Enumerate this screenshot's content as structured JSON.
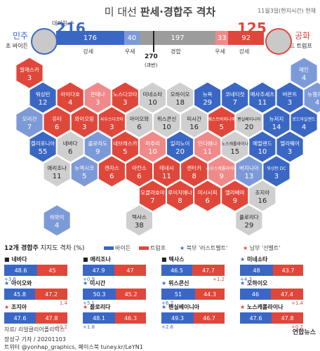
{
  "header": {
    "title_prefix": "미 대선",
    "title_main": "판세·경합주 격차",
    "date": "11월3일(현지시간) 현재",
    "electoral_label": "대의원 수"
  },
  "left": {
    "party": "민주",
    "name": "조 바이든",
    "total": "216"
  },
  "right": {
    "party": "공화",
    "name": "도널드 트럼프",
    "total": "125"
  },
  "bar": {
    "segments": [
      {
        "value": "176",
        "label": "강세",
        "color": "#3b67c4"
      },
      {
        "value": "40",
        "label": "우세",
        "color": "#7d9ad8"
      },
      {
        "value": "197",
        "label": "경합",
        "color": "#9c9c9c"
      },
      {
        "value": "33",
        "label": "우세",
        "color": "#f08a8a"
      },
      {
        "value": "92",
        "label": "강세",
        "color": "#e0473b"
      }
    ],
    "threshold": "270",
    "threshold_note": "(과반)"
  },
  "colors": {
    "sd": "#3b67c4",
    "ld": "#7d9ad8",
    "tu": "#cfcfcf",
    "lr": "#f08a8a",
    "sr": "#e0473b"
  },
  "states": [
    {
      "n": "알래스카",
      "v": "3",
      "c": "sr",
      "q": 0,
      "r": 0
    },
    {
      "n": "워싱턴",
      "v": "12",
      "c": "sd",
      "q": 0,
      "r": 1
    },
    {
      "n": "아이다호",
      "v": "4",
      "c": "sr",
      "q": 1,
      "r": 1
    },
    {
      "n": "몬태나",
      "v": "3",
      "c": "lr",
      "q": 2,
      "r": 1
    },
    {
      "n": "노스다코타",
      "v": "3",
      "c": "sr",
      "q": 3,
      "r": 1
    },
    {
      "n": "미네소타",
      "v": "10",
      "c": "tu",
      "q": 4,
      "r": 1
    },
    {
      "n": "오하이오",
      "v": "18",
      "c": "tu",
      "q": 5,
      "r": 1
    },
    {
      "n": "뉴욕",
      "v": "29",
      "c": "sd",
      "q": 6,
      "r": 1
    },
    {
      "n": "코네티컷",
      "v": "7",
      "c": "sd",
      "q": 7,
      "r": 1
    },
    {
      "n": "매사추세츠",
      "v": "11",
      "c": "sd",
      "q": 8,
      "r": 1
    },
    {
      "n": "버몬트",
      "v": "3",
      "c": "sd",
      "q": 9,
      "r": 1
    },
    {
      "n": "뉴햄프셔",
      "v": "4",
      "c": "ld",
      "q": 10,
      "r": 1
    },
    {
      "n": "메인",
      "v": "4",
      "c": "ld",
      "q": 10,
      "r": 0
    },
    {
      "n": "오리건",
      "v": "7",
      "c": "ld",
      "q": 0,
      "r": 2
    },
    {
      "n": "유타",
      "v": "6",
      "c": "sr",
      "q": 1,
      "r": 2
    },
    {
      "n": "와이오밍",
      "v": "3",
      "c": "sr",
      "q": 2,
      "r": 2
    },
    {
      "n": "사우스다코타",
      "v": "3",
      "c": "sr",
      "q": 3,
      "r": 2
    },
    {
      "n": "아이오와",
      "v": "6",
      "c": "tu",
      "q": 4,
      "r": 2
    },
    {
      "n": "위스콘신",
      "v": "10",
      "c": "tu",
      "q": 5,
      "r": 2
    },
    {
      "n": "미시간",
      "v": "16",
      "c": "tu",
      "q": 6,
      "r": 2
    },
    {
      "n": "웨스트버지니아",
      "v": "5",
      "c": "sr",
      "q": 7,
      "r": 2
    },
    {
      "n": "펜실베이니아",
      "v": "20",
      "c": "tu",
      "q": 8,
      "r": 2
    },
    {
      "n": "뉴저지",
      "v": "14",
      "c": "sd",
      "q": 9,
      "r": 2
    },
    {
      "n": "로드아일랜드",
      "v": "4",
      "c": "sd",
      "q": 10,
      "r": 2
    },
    {
      "n": "캘리포니아",
      "v": "55",
      "c": "sd",
      "q": 0,
      "r": 3
    },
    {
      "n": "네바다",
      "v": "6",
      "c": "tu",
      "q": 1,
      "r": 3
    },
    {
      "n": "콜로라도",
      "v": "9",
      "c": "ld",
      "q": 2,
      "r": 3
    },
    {
      "n": "네브래스카",
      "v": "5",
      "c": "sr",
      "q": 3,
      "r": 3
    },
    {
      "n": "미주리",
      "v": "10",
      "c": "lr",
      "q": 4,
      "r": 3
    },
    {
      "n": "일리노이",
      "v": "20",
      "c": "sd",
      "q": 5,
      "r": 3
    },
    {
      "n": "인디애나",
      "v": "11",
      "c": "lr",
      "q": 6,
      "r": 3
    },
    {
      "n": "노스캐롤라이나",
      "v": "15",
      "c": "tu",
      "q": 7,
      "r": 3
    },
    {
      "n": "메릴랜드",
      "v": "10",
      "c": "sd",
      "q": 8,
      "r": 3
    },
    {
      "n": "델라웨어",
      "v": "3",
      "c": "sd",
      "q": 9,
      "r": 3
    },
    {
      "n": "애리조나",
      "v": "11",
      "c": "tu",
      "q": 1,
      "r": 4
    },
    {
      "n": "뉴멕시코",
      "v": "5",
      "c": "ld",
      "q": 2,
      "r": 4
    },
    {
      "n": "캔자스",
      "v": "6",
      "c": "sr",
      "q": 3,
      "r": 4
    },
    {
      "n": "아칸소",
      "v": "6",
      "c": "sr",
      "q": 4,
      "r": 4
    },
    {
      "n": "테네시",
      "v": "11",
      "c": "sr",
      "q": 5,
      "r": 4
    },
    {
      "n": "켄터키",
      "v": "8",
      "c": "sr",
      "q": 6,
      "r": 4
    },
    {
      "n": "사우스캐롤라이나",
      "v": "9",
      "c": "lr",
      "q": 7,
      "r": 4
    },
    {
      "n": "버지니아",
      "v": "13",
      "c": "ld",
      "q": 8,
      "r": 4
    },
    {
      "n": "워싱턴 DC",
      "v": "3",
      "c": "sd",
      "q": 9,
      "r": 4
    },
    {
      "n": "오클라호마",
      "v": "7",
      "c": "sr",
      "q": 4,
      "r": 5
    },
    {
      "n": "루이지애나",
      "v": "8",
      "c": "sr",
      "q": 5,
      "r": 5
    },
    {
      "n": "미시시피",
      "v": "6",
      "c": "sr",
      "q": 6,
      "r": 5
    },
    {
      "n": "앨라배마",
      "v": "9",
      "c": "sr",
      "q": 7,
      "r": 5
    },
    {
      "n": "조지아",
      "v": "16",
      "c": "tu",
      "q": 8,
      "r": 5
    },
    {
      "n": "하와이",
      "v": "4",
      "c": "ld",
      "q": 1,
      "r": 6
    },
    {
      "n": "텍사스",
      "v": "38",
      "c": "tu",
      "q": 4,
      "r": 6
    },
    {
      "n": "플로리다",
      "v": "29",
      "c": "tu",
      "q": 8,
      "r": 6
    }
  ],
  "legend": {
    "section_title": "12개 경합주",
    "section_sub": "지지도 격차 (%)",
    "biden": "바이든",
    "trump": "트럼프",
    "rust": "북부 '러스트벨트'",
    "sun": "남부 '선벨트'"
  },
  "chart_data": {
    "type": "bar",
    "title": "12개 경합주 지지도 격차 (%)",
    "categories": [
      "네바다",
      "애리조나",
      "텍사스",
      "미네소타",
      "아이오와",
      "미시간",
      "위스콘신",
      "오하이오",
      "조지아",
      "플로리다",
      "펜실베이니아",
      "노스캐롤라이나"
    ],
    "series": [
      {
        "name": "바이든",
        "values": [
          48.6,
          47.9,
          46.5,
          48.0,
          45.8,
          50.3,
          51.0,
          46.0,
          47.6,
          48.1,
          49.3,
          47.6
        ]
      },
      {
        "name": "트럼프",
        "values": [
          45.0,
          47.0,
          47.7,
          43.7,
          47.2,
          45.2,
          44.3,
          47.4,
          47.8,
          46.3,
          46.7,
          47.8
        ]
      }
    ],
    "diffs": [
      "+3.6",
      "+0.9",
      "+1.2",
      "+4.3",
      "1.4",
      "+5.1",
      "+6.7",
      "+1.4",
      "+0.2",
      "+1.8",
      "+2.6",
      "+0.2"
    ],
    "diff_side": [
      "b",
      "b",
      "t",
      "b",
      "t",
      "b",
      "b",
      "t",
      "t",
      "b",
      "b",
      "t"
    ],
    "belt": [
      "",
      "",
      "",
      "r",
      "r",
      "r",
      "r",
      "r",
      "s",
      "s",
      "r",
      "s"
    ]
  },
  "footer": {
    "source": "자료/ 리얼클리어폴리틱스",
    "byline1": "장성구 기자 / 20201103",
    "byline2": "트위터 @yonhap_graphics, 페이스북 tuney.kr/LeYN1",
    "logo": "연합뉴스"
  }
}
